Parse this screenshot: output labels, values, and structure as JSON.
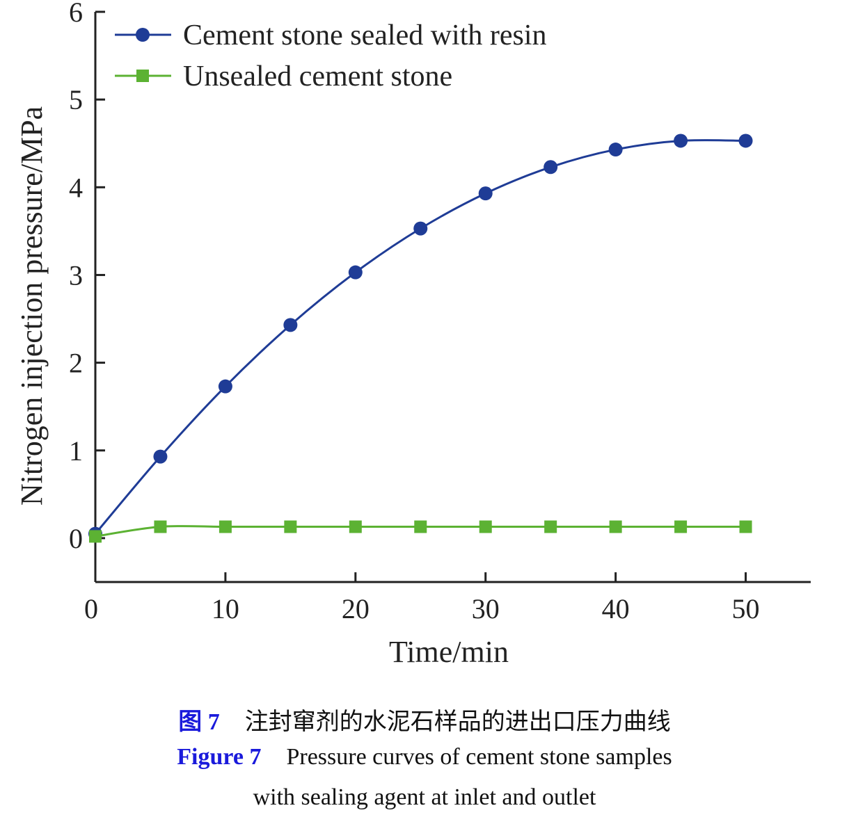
{
  "chart_data": {
    "type": "line",
    "xlabel": "Time/min",
    "ylabel": "Nitrogen injection pressure/MPa",
    "xlim": [
      0,
      55
    ],
    "ylim": [
      -0.5,
      6
    ],
    "x_ticks": [
      "0",
      "10",
      "20",
      "30",
      "40",
      "50"
    ],
    "y_ticks": [
      "0",
      "1",
      "2",
      "3",
      "4",
      "5",
      "6"
    ],
    "legend_position": "top-left",
    "grid": false,
    "series": [
      {
        "name": "Cement stone sealed with resin",
        "color": "#1f3c96",
        "marker": "circle",
        "x": [
          0,
          5,
          10,
          15,
          20,
          25,
          30,
          35,
          40,
          45,
          50
        ],
        "y": [
          0.05,
          0.93,
          1.73,
          2.43,
          3.03,
          3.53,
          3.93,
          4.23,
          4.43,
          4.53,
          4.53
        ]
      },
      {
        "name": "Unsealed cement stone",
        "color": "#5cb233",
        "marker": "square",
        "x": [
          0,
          5,
          10,
          15,
          20,
          25,
          30,
          35,
          40,
          45,
          50
        ],
        "y": [
          0.02,
          0.13,
          0.13,
          0.13,
          0.13,
          0.13,
          0.13,
          0.13,
          0.13,
          0.13,
          0.13
        ]
      }
    ]
  },
  "caption": {
    "cn_label": "图 7",
    "cn_text": "注封窜剂的水泥石样品的进出口压力曲线",
    "en_label": "Figure 7",
    "en_text_line1": "Pressure curves of cement stone samples",
    "en_text_line2": "with sealing agent at inlet and outlet"
  }
}
